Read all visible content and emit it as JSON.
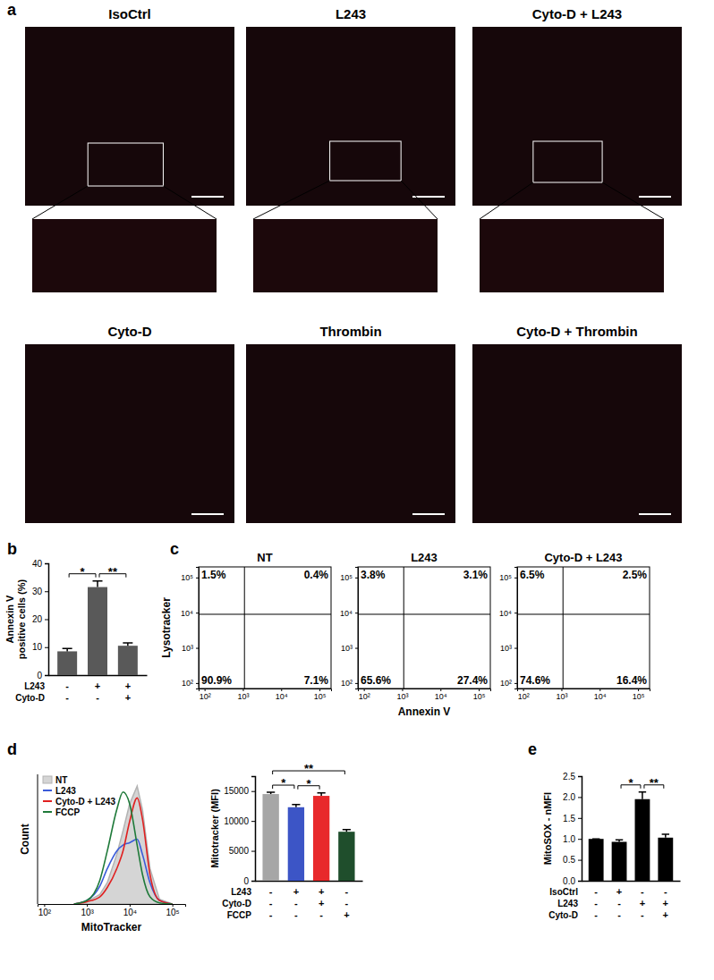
{
  "figure": {
    "panel_labels": [
      "a",
      "b",
      "c",
      "d",
      "e"
    ]
  },
  "images": {
    "titles": [
      "IsoCtrl",
      "L243",
      "Cyto-D + L243",
      "Cyto-D",
      "Thrombin",
      "Cyto-D + Thrombin"
    ]
  },
  "chart_data": [
    {
      "type": "bar",
      "ylabel": [
        "Annexin V",
        "positive cells (%)"
      ],
      "categories": [
        null,
        null,
        null
      ],
      "values": [
        8.5,
        31.5,
        10.5
      ],
      "errors": [
        1.0,
        2.2,
        1.0
      ],
      "color": "#595959",
      "ylim": [
        0,
        40
      ],
      "yticks": [
        0,
        10,
        20,
        30,
        40
      ],
      "significance": [
        {
          "from": 0,
          "to": 1,
          "label": "*"
        },
        {
          "from": 1,
          "to": 2,
          "label": "**"
        }
      ],
      "conditions": [
        {
          "name": "L243",
          "signs": [
            "-",
            "+",
            "+"
          ]
        },
        {
          "name": "Cyto-D",
          "signs": [
            "-",
            "-",
            "+"
          ]
        }
      ]
    },
    {
      "type": "quadrant",
      "title": "NT",
      "ylabel": "Lysotracker",
      "log": true,
      "xlim": [
        70,
        200000
      ],
      "ylim": [
        70,
        200000
      ],
      "xticks": [
        {
          "value": 100,
          "label": "10²"
        },
        {
          "value": 1000,
          "label": "10³"
        },
        {
          "value": 10000,
          "label": "10⁴"
        },
        {
          "value": 100000,
          "label": "10⁵"
        }
      ],
      "yticks": [
        {
          "value": 100,
          "label": "10²"
        },
        {
          "value": 1000,
          "label": "10³"
        },
        {
          "value": 10000,
          "label": "10⁴"
        },
        {
          "value": 100000,
          "label": "10⁵"
        }
      ],
      "gates": {
        "x": 1100,
        "y": 9000
      },
      "quadrants": {
        "values": [
          1.5,
          0.4,
          90.9,
          7.1
        ],
        "value_labels": [
          "1.5%",
          "0.4%",
          "90.9%",
          "7.1%"
        ]
      }
    },
    {
      "type": "quadrant",
      "title": "L243",
      "xlabel": "Annexin V",
      "log": true,
      "xlim": [
        70,
        200000
      ],
      "ylim": [
        70,
        200000
      ],
      "xticks": [
        {
          "value": 100,
          "label": "10²"
        },
        {
          "value": 1000,
          "label": "10³"
        },
        {
          "value": 10000,
          "label": "10⁴"
        },
        {
          "value": 100000,
          "label": "10⁵"
        }
      ],
      "yticks": [
        {
          "value": 100,
          "label": "10²"
        },
        {
          "value": 1000,
          "label": "10³"
        },
        {
          "value": 10000,
          "label": "10⁴"
        },
        {
          "value": 100000,
          "label": "10⁵"
        }
      ],
      "gates": {
        "x": 1100,
        "y": 9000
      },
      "quadrants": {
        "values": [
          3.8,
          3.1,
          65.6,
          27.4
        ],
        "value_labels": [
          "3.8%",
          "3.1%",
          "65.6%",
          "27.4%"
        ]
      }
    },
    {
      "type": "quadrant",
      "title": "Cyto-D + L243",
      "log": true,
      "xlim": [
        70,
        200000
      ],
      "ylim": [
        70,
        200000
      ],
      "xticks": [
        {
          "value": 100,
          "label": "10²"
        },
        {
          "value": 1000,
          "label": "10³"
        },
        {
          "value": 10000,
          "label": "10⁴"
        },
        {
          "value": 100000,
          "label": "10⁵"
        }
      ],
      "yticks": [
        {
          "value": 100,
          "label": "10²"
        },
        {
          "value": 1000,
          "label": "10³"
        },
        {
          "value": 10000,
          "label": "10⁴"
        },
        {
          "value": 100000,
          "label": "10⁵"
        }
      ],
      "gates": {
        "x": 1100,
        "y": 9000
      },
      "quadrants": {
        "values": [
          6.5,
          2.5,
          74.6,
          16.4
        ],
        "value_labels": [
          "6.5%",
          "2.5%",
          "74.6%",
          "16.4%"
        ]
      }
    },
    {
      "type": "line",
      "xlabel": "MitoTracker",
      "ylabel": "Count",
      "log": "x",
      "tick_labels": "x",
      "legend": "upper left",
      "xlim": [
        70,
        200000
      ],
      "ylim": [
        0,
        110
      ],
      "xticks": [
        {
          "value": 100,
          "label": "10²"
        },
        {
          "value": 1000,
          "label": "10³"
        },
        {
          "value": 10000,
          "label": "10⁴"
        },
        {
          "value": 100000,
          "label": "10⁵"
        }
      ],
      "x": [
        500,
        1000,
        2000,
        3000,
        5000,
        7000,
        10000,
        15000,
        20000,
        30000,
        50000,
        100000
      ],
      "series": [
        {
          "name": "NT",
          "type": "area",
          "color": "#b3b3b3",
          "values": [
            0,
            2,
            8,
            18,
            42,
            62,
            85,
            100,
            80,
            30,
            4,
            0
          ]
        },
        {
          "name": "L243",
          "type": "line",
          "color": "#3a5bd9",
          "values": [
            0,
            3,
            15,
            30,
            45,
            50,
            52,
            55,
            42,
            18,
            3,
            0
          ]
        },
        {
          "name": "Cyto-D + L243",
          "type": "line",
          "color": "#e02020",
          "values": [
            0,
            2,
            6,
            14,
            30,
            45,
            70,
            90,
            72,
            25,
            3,
            0
          ]
        },
        {
          "name": "FCCP",
          "type": "line",
          "color": "#1f7a3a",
          "values": [
            0,
            3,
            20,
            45,
            80,
            95,
            85,
            50,
            25,
            6,
            1,
            0
          ]
        }
      ]
    },
    {
      "type": "bar",
      "ylabel": [
        "Mitotracker (MFI)"
      ],
      "categories": [
        null,
        null,
        null,
        null
      ],
      "values": [
        14500,
        12300,
        14200,
        8200
      ],
      "errors": [
        300,
        450,
        500,
        350
      ],
      "colors": [
        "#a6a6a6",
        "#3c55c6",
        "#e8292b",
        "#1f4e2c"
      ],
      "ylim": [
        0,
        17500
      ],
      "yticks": [
        0,
        5000,
        10000,
        15000
      ],
      "significance": [
        {
          "from": 0,
          "to": 1,
          "label": "*"
        },
        {
          "from": 1,
          "to": 2,
          "label": "*"
        },
        {
          "from": 0,
          "to": 3,
          "label": "**"
        }
      ],
      "conditions": [
        {
          "name": "L243",
          "signs": [
            "-",
            "+",
            "+",
            "-"
          ]
        },
        {
          "name": "Cyto-D",
          "signs": [
            "-",
            "-",
            "+",
            "-"
          ]
        },
        {
          "name": "FCCP",
          "signs": [
            "-",
            "-",
            "-",
            "+"
          ]
        }
      ]
    },
    {
      "type": "bar",
      "ylabel": [
        "MitoSOX - nMFI"
      ],
      "categories": [
        null,
        null,
        null,
        null
      ],
      "values": [
        1.0,
        0.93,
        1.95,
        1.03
      ],
      "errors": [
        0,
        0.05,
        0.17,
        0.08
      ],
      "color": "#000000",
      "ylim": [
        0,
        2.5
      ],
      "yticks": [
        {
          "value": 0,
          "label": "0.0"
        },
        0.5,
        {
          "value": 1,
          "label": "1.0"
        },
        1.5,
        {
          "value": 2,
          "label": "2.0"
        },
        2.5
      ],
      "significance": [
        {
          "from": 1,
          "to": 2,
          "label": "*"
        },
        {
          "from": 2,
          "to": 3,
          "label": "**"
        }
      ],
      "conditions": [
        {
          "name": "IsoCtrl",
          "signs": [
            "-",
            "+",
            "-",
            "-"
          ]
        },
        {
          "name": "L243",
          "signs": [
            "-",
            "-",
            "+",
            "+"
          ]
        },
        {
          "name": "Cyto-D",
          "signs": [
            "-",
            "-",
            "-",
            "+"
          ]
        }
      ]
    }
  ]
}
